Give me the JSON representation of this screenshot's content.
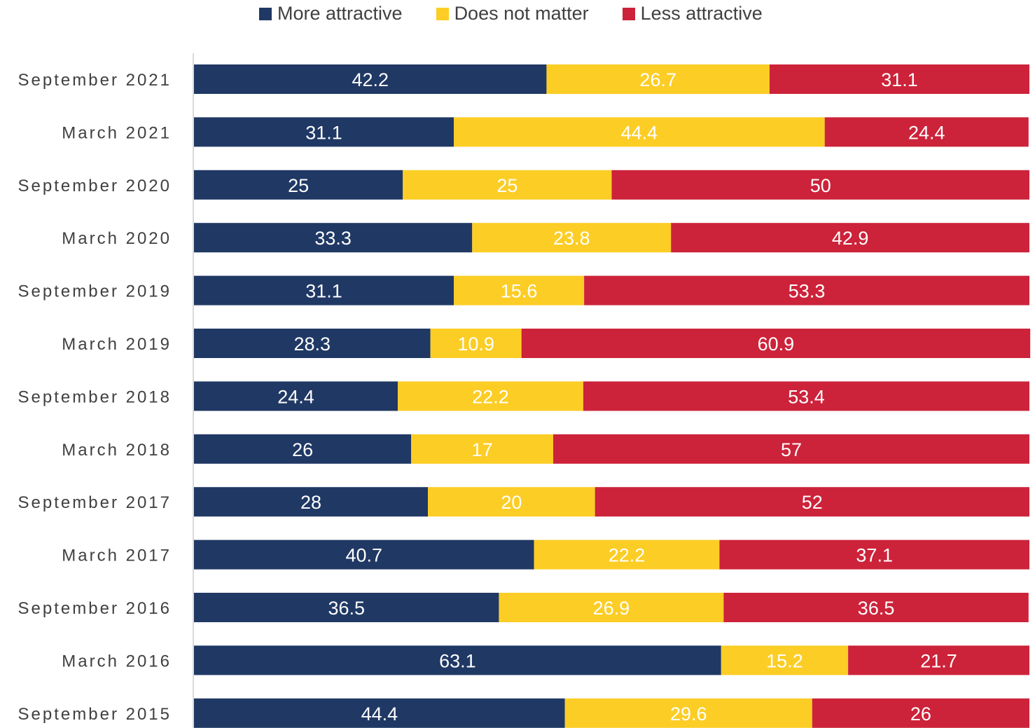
{
  "chart_data": {
    "type": "bar",
    "orientation": "horizontal",
    "stacked": true,
    "categories": [
      "September 2021",
      "March 2021",
      "September 2020",
      "March 2020",
      "September 2019",
      "March 2019",
      "September 2018",
      "March 2018",
      "September 2017",
      "March 2017",
      "September 2016",
      "March 2016",
      "September 2015"
    ],
    "series": [
      {
        "name": "More attractive",
        "color": "#203864",
        "values": [
          42.2,
          31.1,
          25,
          33.3,
          31.1,
          28.3,
          24.4,
          26,
          28,
          40.7,
          36.5,
          63.1,
          44.4
        ]
      },
      {
        "name": "Does not matter",
        "color": "#FCCD25",
        "values": [
          26.7,
          44.4,
          25,
          23.8,
          15.6,
          10.9,
          22.2,
          17,
          20,
          22.2,
          26.9,
          15.2,
          29.6
        ]
      },
      {
        "name": "Less attractive",
        "color": "#CC233A",
        "values": [
          31.1,
          24.4,
          50,
          42.9,
          53.3,
          60.9,
          53.4,
          57,
          52,
          37.1,
          36.5,
          21.7,
          26
        ]
      }
    ],
    "xlim": [
      0,
      100
    ],
    "legend_position": "top",
    "grid": false,
    "data_labels": true,
    "label_color": "#ffffff",
    "category_label_color": "#404040",
    "axis_color": "#d9d9d9"
  }
}
